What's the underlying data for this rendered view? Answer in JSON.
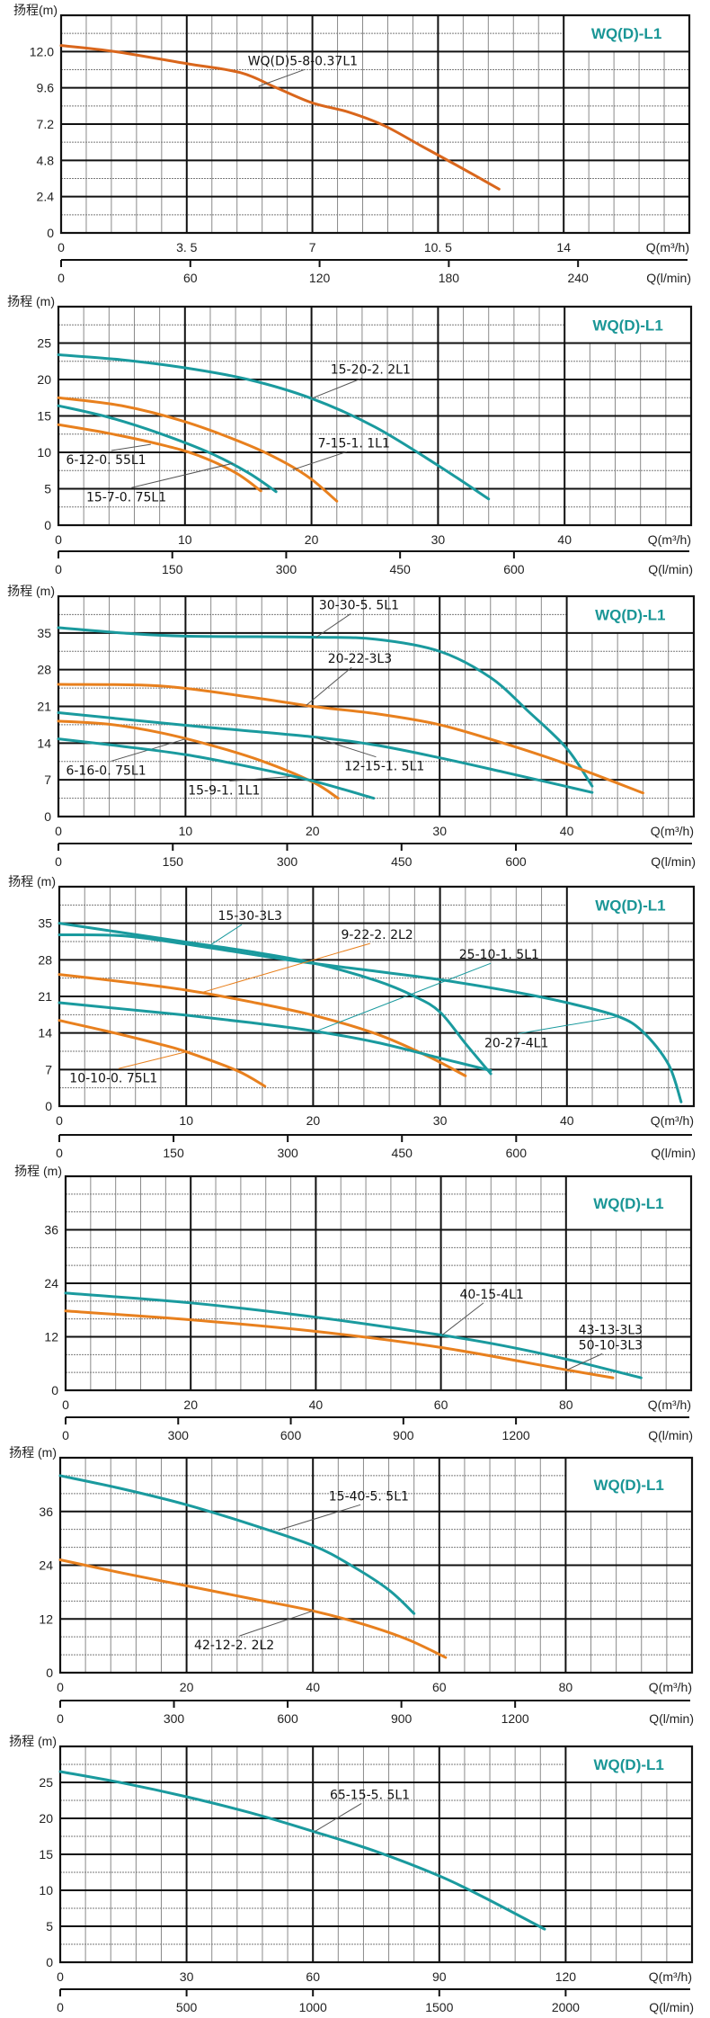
{
  "chart_data": [
    {
      "type": "line",
      "title": "WQ(D)-L1",
      "ylabel": "扬程(m)",
      "xlabel": "Q(m³/h)",
      "x2label": "Q(l/min)",
      "xlim": [
        0,
        17.5
      ],
      "ylim": [
        0,
        14.4
      ],
      "xticks": [
        0,
        3.5,
        7,
        10.5,
        14
      ],
      "xtick_labels": [
        "0",
        "3. 5",
        "7",
        "10. 5",
        "14"
      ],
      "x_minor_step": 0.7,
      "yticks": [
        0,
        2.4,
        4.8,
        7.2,
        9.6,
        12.0
      ],
      "ytick_labels": [
        "0",
        "2.4",
        "4.8",
        "7.2",
        "9.6",
        "12.0"
      ],
      "y_minor_step": 1.2,
      "x2ticks": [
        0,
        60,
        120,
        180,
        240
      ],
      "x2_factor": 16.6667,
      "grid": true,
      "series": [
        {
          "name": "WQ(D)5-8-0.37L1",
          "color": "#d9661c",
          "x": [
            0,
            1.5,
            3.5,
            5,
            6,
            7,
            8,
            9,
            10,
            11,
            12.2
          ],
          "y": [
            12.4,
            12.0,
            11.2,
            10.6,
            9.6,
            8.6,
            8.0,
            7.1,
            5.8,
            4.5,
            2.9
          ],
          "label_at": [
            5.5,
            9.7
          ],
          "label_text_pos": [
            5.2,
            11.1
          ]
        }
      ]
    },
    {
      "type": "line",
      "title": "WQ(D)-L1",
      "ylabel": "扬程 (m)",
      "xlabel": "Q(m³/h)",
      "x2label": "Q(l/min)",
      "xlim": [
        0,
        50
      ],
      "ylim": [
        0,
        30
      ],
      "xticks": [
        0,
        10,
        20,
        30,
        40
      ],
      "xtick_labels": [
        "0",
        "10",
        "20",
        "30",
        "40"
      ],
      "x_minor_step": 2,
      "yticks": [
        0,
        5,
        10,
        15,
        20,
        25
      ],
      "ytick_labels": [
        "0",
        "5",
        "10",
        "15",
        "20",
        "25"
      ],
      "y_minor_step": 2.5,
      "x2ticks": [
        0,
        150,
        300,
        450,
        600
      ],
      "x2_factor": 16.6667,
      "grid": true,
      "series": [
        {
          "name": "15-20-2. 2L1",
          "color": "#1a9a9e",
          "x": [
            0,
            5,
            10,
            15,
            20,
            25,
            30,
            34
          ],
          "y": [
            23.4,
            22.7,
            21.6,
            20.0,
            17.4,
            13.5,
            8.2,
            3.6
          ],
          "label_at": [
            20,
            17.4
          ],
          "label_text_pos": [
            21.5,
            20.8
          ]
        },
        {
          "name": "7-15-1. 1L1",
          "color": "#e8801e",
          "x": [
            0,
            5,
            10,
            15,
            18,
            20,
            22
          ],
          "y": [
            17.5,
            16.4,
            14.2,
            11.0,
            8.5,
            6.3,
            3.3
          ],
          "label_at": [
            18.5,
            7.6
          ],
          "label_text_pos": [
            20.5,
            10.7
          ]
        },
        {
          "name": "6-12-0. 55L1",
          "color": "#1a9a9e",
          "x": [
            0,
            4,
            8,
            12,
            15,
            17.2
          ],
          "y": [
            16.4,
            14.8,
            12.6,
            9.9,
            7.2,
            4.6
          ],
          "label_at": [
            7.3,
            11.1
          ],
          "label_text_pos": [
            0.6,
            8.4
          ]
        },
        {
          "name": "15-7-0. 75L1",
          "color": "#e8801e",
          "x": [
            0,
            4,
            8,
            11,
            14,
            16
          ],
          "y": [
            13.8,
            12.6,
            11.1,
            9.6,
            7.2,
            4.7
          ],
          "label_at": [
            13.8,
            8.5
          ],
          "label_text_pos": [
            2.2,
            3.3
          ]
        }
      ]
    },
    {
      "type": "line",
      "title": "WQ(D)-L1",
      "ylabel": "扬程 (m)",
      "xlabel": "Q(m³/h)",
      "x2label": "Q(l/min)",
      "xlim": [
        0,
        50
      ],
      "ylim": [
        0,
        42
      ],
      "xticks": [
        0,
        10,
        20,
        30,
        40
      ],
      "xtick_labels": [
        "0",
        "10",
        "20",
        "30",
        "40"
      ],
      "x_minor_step": 2,
      "yticks": [
        0,
        7,
        14,
        21,
        28,
        35
      ],
      "ytick_labels": [
        "0",
        "7",
        "14",
        "21",
        "28",
        "35"
      ],
      "y_minor_step": 3.5,
      "x2ticks": [
        0,
        150,
        300,
        450,
        600
      ],
      "x2_factor": 16.6667,
      "grid": true,
      "series": [
        {
          "name": "30-30-5. 5L1",
          "color": "#1a9a9e",
          "x": [
            0,
            5,
            10,
            20,
            25,
            30,
            34,
            37,
            40,
            42
          ],
          "y": [
            36.0,
            35.0,
            34.4,
            34.2,
            33.8,
            31.5,
            26.5,
            20.0,
            13.0,
            5.8
          ],
          "label_at": [
            20.3,
            34.2
          ],
          "label_text_pos": [
            20.5,
            39.5
          ]
        },
        {
          "name": "20-22-3L3",
          "color": "#e8801e",
          "x": [
            0,
            8,
            15,
            20,
            25,
            30,
            35,
            40,
            46
          ],
          "y": [
            25.2,
            24.9,
            22.8,
            21.0,
            19.6,
            17.5,
            14.0,
            10.0,
            4.5
          ],
          "label_at": [
            19.5,
            21.2
          ],
          "label_text_pos": [
            21.2,
            29.3
          ]
        },
        {
          "name": "12-15-1. 5L1",
          "color": "#1a9a9e",
          "x": [
            0,
            10,
            20,
            25,
            30,
            35,
            42
          ],
          "y": [
            19.8,
            17.4,
            15.2,
            13.6,
            11.2,
            8.5,
            4.6
          ],
          "label_at": [
            20.3,
            15.0
          ],
          "label_text_pos": [
            22.5,
            8.8
          ]
        },
        {
          "name": "6-16-0. 75L1",
          "color": "#e8801e",
          "x": [
            0,
            4,
            8,
            12,
            16,
            20,
            22
          ],
          "y": [
            18.2,
            17.6,
            16.0,
            13.6,
            10.6,
            6.6,
            3.5
          ],
          "label_at": [
            10.0,
            14.8
          ],
          "label_text_pos": [
            0.6,
            8.0
          ]
        },
        {
          "name": "15-9-1. 1L1",
          "color": "#1a9a9e",
          "x": [
            0,
            5,
            10,
            15,
            20,
            24.8
          ],
          "y": [
            14.8,
            13.4,
            11.8,
            9.5,
            6.8,
            3.5
          ],
          "label_at": [
            18.2,
            7.6
          ],
          "label_text_pos": [
            10.2,
            4.2
          ]
        }
      ]
    },
    {
      "type": "line",
      "title": "WQ(D)-L1",
      "ylabel": "扬程 (m)",
      "xlabel": "Q(m³/h)",
      "x2label": "Q(l/min)",
      "xlim": [
        0,
        50
      ],
      "ylim": [
        0,
        42
      ],
      "xticks": [
        0,
        10,
        20,
        30,
        40
      ],
      "xtick_labels": [
        "0",
        "10",
        "20",
        "30",
        "40"
      ],
      "x_minor_step": 2,
      "yticks": [
        0,
        7,
        14,
        21,
        28,
        35
      ],
      "ytick_labels": [
        "0",
        "7",
        "14",
        "21",
        "28",
        "35"
      ],
      "y_minor_step": 3.5,
      "x2ticks": [
        0,
        150,
        300,
        450,
        600
      ],
      "x2_factor": 16.6667,
      "grid": true,
      "series": [
        {
          "name": "15-30-3L3",
          "color": "#1a9a9e",
          "x": [
            0,
            5,
            10,
            15,
            20,
            25,
            28,
            30,
            32,
            34
          ],
          "y": [
            35.0,
            33.2,
            31.4,
            29.6,
            27.4,
            24.0,
            21.0,
            18.0,
            12.0,
            6.2
          ],
          "label_at": [
            12.0,
            31.0
          ],
          "label_text_pos": [
            12.5,
            35.6
          ],
          "leader": "colored"
        },
        {
          "name": "20-27-4L1",
          "color": "#1a9a9e",
          "x": [
            0,
            5,
            10,
            18,
            25,
            30,
            36,
            40,
            44,
            46,
            48,
            49
          ],
          "y": [
            32.8,
            32.6,
            31.0,
            28.0,
            25.8,
            24.2,
            21.8,
            19.8,
            17.2,
            14.2,
            8.0,
            0.8
          ],
          "label_at": [
            44.2,
            17.2
          ],
          "label_text_pos": [
            33.5,
            11.3
          ],
          "leader": "colored"
        },
        {
          "name": "9-22-2. 2L2",
          "color": "#e8801e",
          "x": [
            0,
            5,
            10,
            15,
            20,
            25,
            29,
            32
          ],
          "y": [
            25.2,
            23.8,
            22.2,
            20.0,
            17.4,
            13.8,
            9.6,
            5.8
          ],
          "label_at": [
            11.3,
            21.8
          ],
          "label_text_pos": [
            22.2,
            32.0
          ],
          "leader": "colored"
        },
        {
          "name": "25-10-1. 5L1",
          "color": "#1a9a9e",
          "x": [
            0,
            5,
            10,
            15,
            20,
            25,
            30,
            34
          ],
          "y": [
            19.8,
            18.6,
            17.4,
            16.0,
            14.4,
            12.2,
            9.2,
            6.8
          ],
          "label_at": [
            20.3,
            14.4
          ],
          "label_text_pos": [
            31.5,
            28.2
          ],
          "leader": "colored"
        },
        {
          "name": "10-10-0. 75L1",
          "color": "#e8801e",
          "x": [
            0,
            4,
            8,
            10,
            14,
            16.2
          ],
          "y": [
            16.4,
            14.2,
            11.8,
            10.4,
            6.8,
            3.8
          ],
          "label_at": [
            10.0,
            10.4
          ],
          "label_text_pos": [
            0.8,
            4.6
          ],
          "leader": "colored"
        }
      ]
    },
    {
      "type": "line",
      "title": "WQ(D)-L1",
      "ylabel": "扬程 (m)",
      "xlabel": "Q(m³/h)",
      "x2label": "Q(l/min)",
      "xlim": [
        0,
        100
      ],
      "ylim": [
        0,
        48
      ],
      "xticks": [
        0,
        20,
        40,
        60,
        80
      ],
      "xtick_labels": [
        "0",
        "20",
        "40",
        "60",
        "80"
      ],
      "x_minor_step": 4,
      "yticks": [
        0,
        12,
        24,
        36
      ],
      "ytick_labels": [
        "0",
        "12",
        "24",
        "36"
      ],
      "y_minor_step": 4,
      "x2ticks": [
        0,
        300,
        600,
        900,
        1200
      ],
      "x2_factor": 16.6667,
      "grid": true,
      "series": [
        {
          "name": "40-15-4L1",
          "color": "#1a9a9e",
          "x": [
            0,
            20,
            40,
            60,
            70,
            80,
            92
          ],
          "y": [
            21.8,
            19.6,
            16.4,
            12.4,
            10.0,
            7.0,
            2.8
          ],
          "label_at": [
            60.2,
            12.4
          ],
          "label_text_pos": [
            63,
            20.6
          ]
        },
        {
          "name": "43-13-3L3",
          "color": "#1a9a9e",
          "label_only": true,
          "label_text_pos": [
            82,
            12.6
          ]
        },
        {
          "name": "50-10-3L3",
          "color": "#e8801e",
          "x": [
            0,
            20,
            40,
            60,
            80,
            87.5
          ],
          "y": [
            17.8,
            15.8,
            13.2,
            9.6,
            4.6,
            2.8
          ],
          "label_at": [
            80.2,
            4.6
          ],
          "label_text_pos": [
            82,
            9.2
          ]
        }
      ]
    },
    {
      "type": "line",
      "title": "WQ(D)-L1",
      "ylabel": "扬程 (m)",
      "xlabel": "Q(m³/h)",
      "x2label": "Q(l/min)",
      "xlim": [
        0,
        100
      ],
      "ylim": [
        0,
        48
      ],
      "xticks": [
        0,
        20,
        40,
        60,
        80
      ],
      "xtick_labels": [
        "0",
        "20",
        "40",
        "60",
        "80"
      ],
      "x_minor_step": 4,
      "yticks": [
        0,
        12,
        24,
        36
      ],
      "ytick_labels": [
        "0",
        "12",
        "24",
        "36"
      ],
      "y_minor_step": 4,
      "x2ticks": [
        0,
        300,
        600,
        900,
        1200
      ],
      "x2_factor": 16.6667,
      "grid": true,
      "series": [
        {
          "name": "15-40-5. 5L1",
          "color": "#1a9a9e",
          "x": [
            0,
            10,
            20,
            30,
            40,
            46,
            52,
            56
          ],
          "y": [
            44.0,
            41.0,
            37.5,
            33.2,
            28.4,
            24.0,
            18.5,
            13.2
          ],
          "label_at": [
            34.5,
            31.8
          ],
          "label_text_pos": [
            42.5,
            38.5
          ]
        },
        {
          "name": "42-12-2. 2L2",
          "color": "#e8801e",
          "x": [
            0,
            10,
            20,
            30,
            40,
            48,
            55,
            61
          ],
          "y": [
            25.2,
            22.2,
            19.4,
            16.6,
            13.8,
            10.8,
            7.4,
            3.4
          ],
          "label_at": [
            40.0,
            13.8
          ],
          "label_text_pos": [
            21.2,
            5.2
          ]
        }
      ]
    },
    {
      "type": "line",
      "title": "WQ(D)-L1",
      "ylabel": "扬程 (m)",
      "xlabel": "Q(m³/h)",
      "x2label": "Q(l/min)",
      "xlim": [
        0,
        150
      ],
      "ylim": [
        0,
        30
      ],
      "xticks": [
        0,
        30,
        60,
        90,
        120
      ],
      "xtick_labels": [
        "0",
        "30",
        "60",
        "90",
        "120"
      ],
      "x_minor_step": 6,
      "yticks": [
        0,
        5,
        10,
        15,
        20,
        25
      ],
      "ytick_labels": [
        "0",
        "5",
        "10",
        "15",
        "20",
        "25"
      ],
      "y_minor_step": 2.5,
      "x2ticks": [
        0,
        500,
        1000,
        1500,
        2000
      ],
      "x2_factor": 16.6667,
      "grid": true,
      "series": [
        {
          "name": "65-15-5. 5L1",
          "color": "#1a9a9e",
          "x": [
            0,
            15,
            30,
            45,
            60,
            75,
            90,
            100,
            115
          ],
          "y": [
            26.5,
            24.9,
            23.0,
            20.8,
            18.2,
            15.4,
            12.0,
            9.2,
            4.6
          ],
          "label_at": [
            60.5,
            18.2
          ],
          "label_text_pos": [
            64,
            22.7
          ]
        }
      ]
    }
  ]
}
